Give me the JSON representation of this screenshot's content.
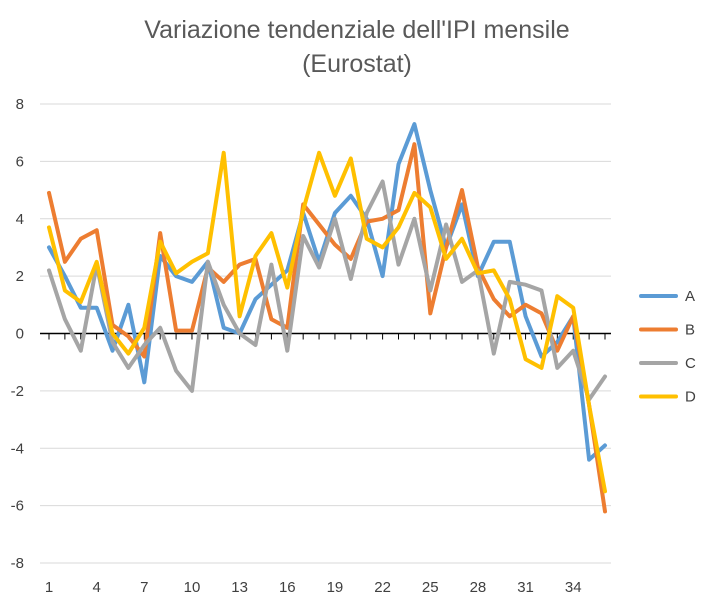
{
  "chart_data": {
    "type": "line",
    "title_lines": [
      "Variazione tendenziale dell'IPI mensile",
      "(Eurostat)"
    ],
    "xlabel": "",
    "ylabel": "",
    "ylim": [
      -8,
      8
    ],
    "y_ticks": [
      8,
      6,
      4,
      2,
      0,
      -2,
      -4,
      -6,
      -8
    ],
    "x_range": [
      1,
      36
    ],
    "x_tick_labels": [
      1,
      4,
      7,
      10,
      13,
      16,
      19,
      22,
      25,
      28,
      31,
      34
    ],
    "grid": "horizontal",
    "legend_position": "right",
    "x": [
      1,
      2,
      3,
      4,
      5,
      6,
      7,
      8,
      9,
      10,
      11,
      12,
      13,
      14,
      15,
      16,
      17,
      18,
      19,
      20,
      21,
      22,
      23,
      24,
      25,
      26,
      27,
      28,
      29,
      30,
      31,
      32,
      33,
      34,
      35,
      36
    ],
    "series": [
      {
        "name": "A",
        "color": "#5B9BD5",
        "values": [
          3.0,
          2.0,
          0.9,
          0.9,
          -0.6,
          1.0,
          -1.7,
          2.7,
          2.0,
          1.8,
          2.5,
          0.2,
          0.0,
          1.2,
          1.7,
          2.2,
          4.2,
          2.5,
          4.2,
          4.8,
          4.0,
          2.0,
          5.9,
          7.3,
          5.0,
          3.0,
          4.5,
          2.0,
          3.2,
          3.2,
          0.6,
          -0.8,
          -0.3,
          0.6,
          -4.4,
          -3.9
        ]
      },
      {
        "name": "B",
        "color": "#ED7D31",
        "values": [
          4.9,
          2.5,
          3.3,
          3.6,
          0.3,
          -0.1,
          -0.8,
          3.5,
          0.1,
          0.1,
          2.3,
          1.8,
          2.4,
          2.6,
          0.5,
          0.2,
          4.5,
          3.8,
          3.1,
          2.6,
          3.9,
          4.0,
          4.3,
          6.6,
          0.7,
          3.0,
          5.0,
          2.3,
          1.2,
          0.6,
          1.0,
          0.7,
          -0.6,
          0.6,
          -2.5,
          -6.2
        ]
      },
      {
        "name": "C",
        "color": "#A5A5A5",
        "values": [
          2.2,
          0.5,
          -0.6,
          2.4,
          -0.3,
          -1.2,
          -0.4,
          0.2,
          -1.3,
          -2.0,
          2.5,
          1.0,
          0.0,
          -0.4,
          2.4,
          -0.6,
          3.4,
          2.3,
          4.0,
          1.9,
          4.2,
          5.3,
          2.4,
          4.0,
          1.5,
          3.8,
          1.8,
          2.2,
          -0.7,
          1.8,
          1.7,
          1.5,
          -1.2,
          -0.6,
          -2.3,
          -1.5
        ]
      },
      {
        "name": "D",
        "color": "#FFC000",
        "values": [
          3.7,
          1.5,
          1.1,
          2.5,
          0.0,
          -0.7,
          0.2,
          3.2,
          2.1,
          2.5,
          2.8,
          6.3,
          0.6,
          2.7,
          3.5,
          1.6,
          4.3,
          6.3,
          4.8,
          6.1,
          3.3,
          3.0,
          3.7,
          4.9,
          4.4,
          2.6,
          3.3,
          2.1,
          2.2,
          1.2,
          -0.9,
          -1.2,
          1.3,
          0.9,
          -2.5,
          -5.5
        ]
      }
    ]
  }
}
